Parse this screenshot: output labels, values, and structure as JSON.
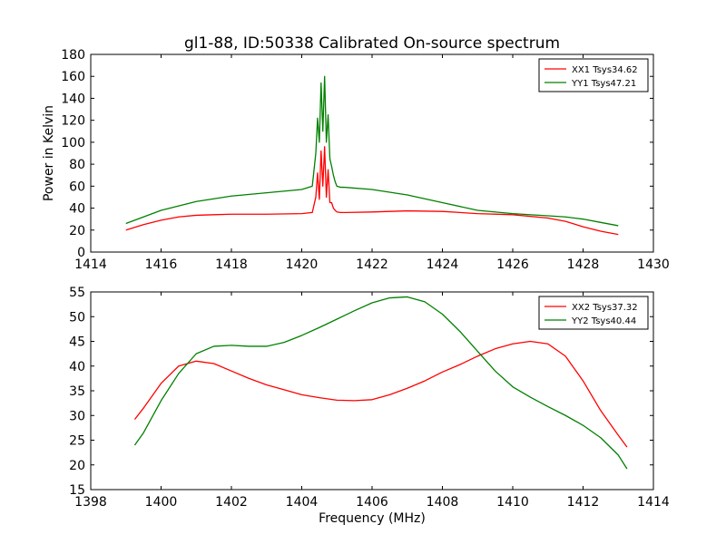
{
  "title": "gl1-88, ID:50338 Calibrated On-source spectrum",
  "chart_data": [
    {
      "type": "line",
      "xlim": [
        1414,
        1430
      ],
      "ylim": [
        0,
        180
      ],
      "xticks": [
        1414,
        1416,
        1418,
        1420,
        1422,
        1424,
        1426,
        1428,
        1430
      ],
      "yticks": [
        0,
        20,
        40,
        60,
        80,
        100,
        120,
        140,
        160,
        180
      ],
      "xlabel": "",
      "ylabel": "Power in Kelvin",
      "legend_position": "top-right",
      "series": [
        {
          "name": "XX1 Tsys34.62",
          "color": "#ff0000",
          "x": [
            1415.0,
            1415.5,
            1416.0,
            1416.5,
            1417.0,
            1417.5,
            1418.0,
            1419.0,
            1420.0,
            1420.3,
            1420.4,
            1420.45,
            1420.5,
            1420.55,
            1420.6,
            1420.65,
            1420.7,
            1420.75,
            1420.8,
            1420.85,
            1420.9,
            1420.95,
            1421.0,
            1421.1,
            1421.2,
            1422.0,
            1423.0,
            1424.0,
            1425.0,
            1426.0,
            1427.0,
            1427.5,
            1428.0,
            1428.5,
            1429.0
          ],
          "y": [
            20,
            25,
            29,
            32,
            33.5,
            34,
            34.5,
            34.5,
            35,
            36,
            50,
            72,
            48,
            92,
            60,
            96,
            50,
            75,
            45,
            45,
            40,
            38,
            36.5,
            36,
            36,
            36.5,
            37.5,
            37,
            35,
            34,
            31,
            28,
            23,
            19,
            16
          ]
        },
        {
          "name": "YY1 Tsys47.21",
          "color": "#008000",
          "x": [
            1415.0,
            1415.5,
            1416.0,
            1416.5,
            1417.0,
            1417.5,
            1418.0,
            1419.0,
            1420.0,
            1420.3,
            1420.4,
            1420.45,
            1420.5,
            1420.55,
            1420.6,
            1420.65,
            1420.7,
            1420.75,
            1420.8,
            1420.85,
            1420.9,
            1420.95,
            1421.0,
            1421.1,
            1421.2,
            1422.0,
            1423.0,
            1424.0,
            1425.0,
            1426.0,
            1427.0,
            1427.5,
            1428.0,
            1428.5,
            1429.0
          ],
          "y": [
            26,
            32,
            38,
            42,
            46,
            48.5,
            51,
            54,
            57,
            60,
            90,
            122,
            100,
            154,
            110,
            160,
            100,
            125,
            85,
            78,
            70,
            64,
            60,
            59,
            59,
            57,
            52,
            45,
            38,
            35,
            33,
            32,
            30,
            27,
            24
          ]
        }
      ]
    },
    {
      "type": "line",
      "xlim": [
        1398,
        1414
      ],
      "ylim": [
        15,
        55
      ],
      "xticks": [
        1398,
        1400,
        1402,
        1404,
        1406,
        1408,
        1410,
        1412,
        1414
      ],
      "yticks": [
        15,
        20,
        25,
        30,
        35,
        40,
        45,
        50,
        55
      ],
      "xlabel": "Frequency (MHz)",
      "ylabel": "",
      "legend_position": "top-right",
      "series": [
        {
          "name": "XX2 Tsys37.32",
          "color": "#ff0000",
          "x": [
            1399.25,
            1399.5,
            1400.0,
            1400.5,
            1401.0,
            1401.5,
            1402.0,
            1402.5,
            1403.0,
            1403.5,
            1404.0,
            1404.5,
            1405.0,
            1405.5,
            1406.0,
            1406.5,
            1407.0,
            1407.5,
            1408.0,
            1408.5,
            1409.0,
            1409.5,
            1410.0,
            1410.5,
            1411.0,
            1411.5,
            1412.0,
            1412.5,
            1413.0,
            1413.25
          ],
          "y": [
            29.2,
            31.5,
            36.5,
            40,
            41,
            40.5,
            39,
            37.5,
            36.2,
            35.2,
            34.2,
            33.6,
            33.1,
            33,
            33.2,
            34.2,
            35.5,
            37,
            38.8,
            40.3,
            42,
            43.5,
            44.5,
            45,
            44.5,
            42,
            37,
            31,
            26,
            23.6
          ]
        },
        {
          "name": "YY2 Tsys40.44",
          "color": "#008000",
          "x": [
            1399.25,
            1399.5,
            1400.0,
            1400.5,
            1401.0,
            1401.5,
            1402.0,
            1402.5,
            1403.0,
            1403.5,
            1404.0,
            1404.5,
            1405.0,
            1405.5,
            1406.0,
            1406.5,
            1407.0,
            1407.5,
            1408.0,
            1408.5,
            1409.0,
            1409.5,
            1410.0,
            1410.5,
            1411.0,
            1411.5,
            1412.0,
            1412.5,
            1413.0,
            1413.25
          ],
          "y": [
            24,
            26.5,
            33,
            38.5,
            42.5,
            44,
            44.2,
            44,
            44,
            44.8,
            46.2,
            47.8,
            49.5,
            51.2,
            52.8,
            53.8,
            54,
            53,
            50.5,
            47,
            43,
            39,
            35.8,
            33.7,
            31.8,
            30,
            28,
            25.5,
            22,
            19.2
          ]
        }
      ]
    }
  ]
}
